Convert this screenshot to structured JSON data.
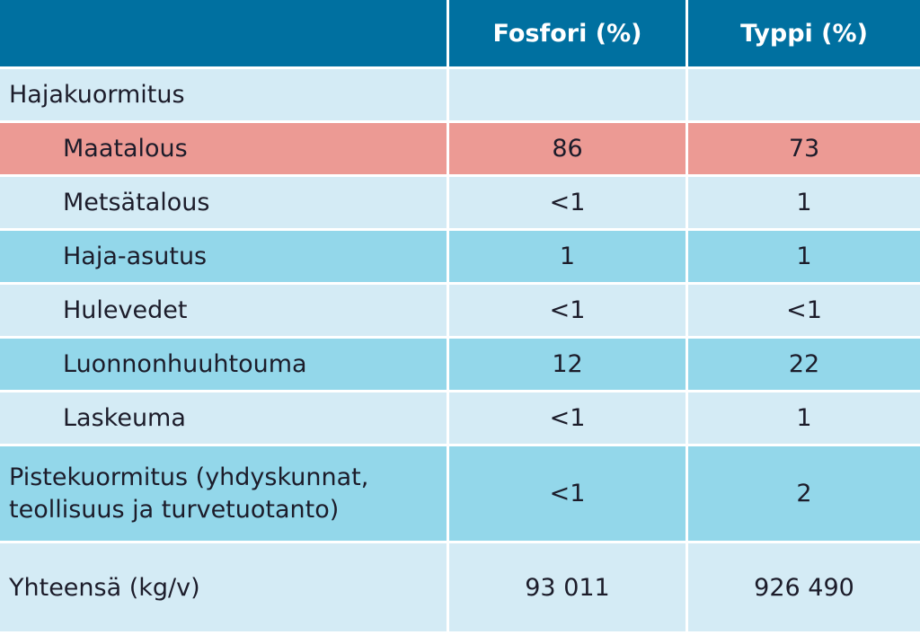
{
  "header": {
    "col1": "",
    "col2": "Fosfori (%)",
    "col3": "Typpi (%)"
  },
  "rows": [
    {
      "label": "Hajakuormitus",
      "fosfori": "",
      "typpi": ""
    },
    {
      "label": "Maatalous",
      "fosfori": "86",
      "typpi": "73"
    },
    {
      "label": "Metsätalous",
      "fosfori": "<1",
      "typpi": "1"
    },
    {
      "label": "Haja-asutus",
      "fosfori": "1",
      "typpi": "1"
    },
    {
      "label": "Hulevedet",
      "fosfori": "<1",
      "typpi": "<1"
    },
    {
      "label": "Luonnonhuuhtouma",
      "fosfori": "12",
      "typpi": "22"
    },
    {
      "label": "Laskeuma",
      "fosfori": "<1",
      "typpi": "1"
    },
    {
      "label_line1": "Pistekuormitus (yhdyskunnat,",
      "label_line2": "teollisuus ja turvetuotanto)",
      "fosfori": "<1",
      "typpi": "2"
    },
    {
      "label": "Yhteensä (kg/v)",
      "fosfori": "93 011",
      "typpi": "926 490"
    }
  ],
  "colors": {
    "header": "#0070a0",
    "row_light": "#d4ebf5",
    "row_dark": "#93d7ea",
    "row_highlight": "#ec9a94"
  }
}
